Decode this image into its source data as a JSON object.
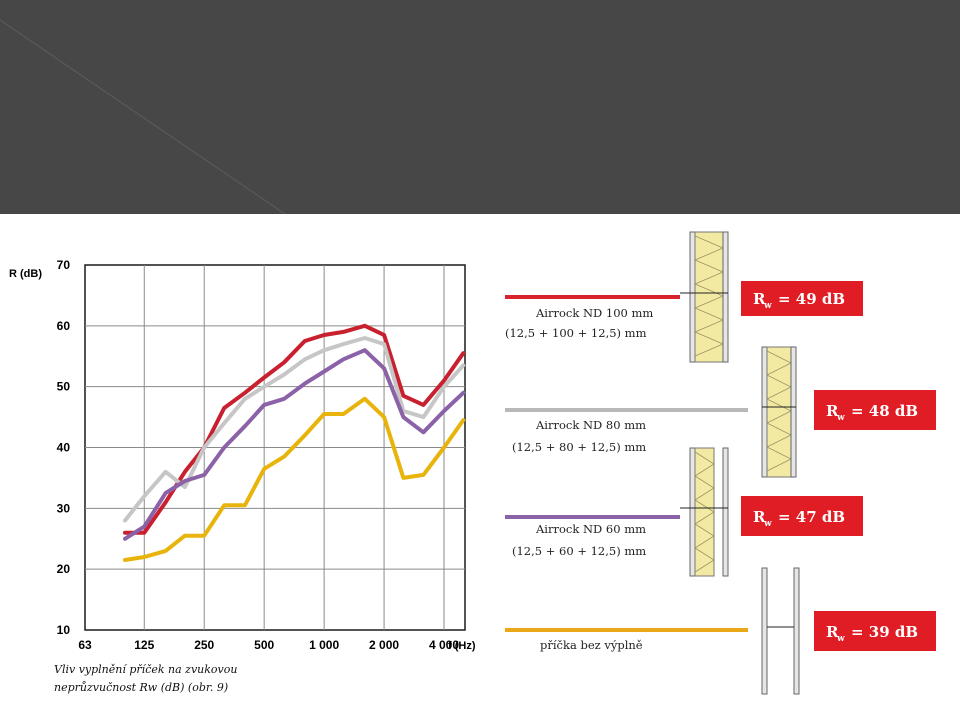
{
  "chart_data": {
    "type": "line",
    "ylabel": "R (dB)",
    "xlabel": "f (Hz)",
    "ylim": [
      10,
      70
    ],
    "yticks": [
      10,
      20,
      30,
      40,
      50,
      60,
      70
    ],
    "xticks": [
      "63",
      "125",
      "250",
      "500",
      "1 000",
      "2 000",
      "4 000"
    ],
    "grid": true,
    "caption_line1": "Vliv vyplnění příček na zvukovou",
    "caption_line2": "neprůzvučnost Rw (dB) (obr. 9)",
    "x": [
      100,
      125,
      160,
      200,
      250,
      315,
      400,
      500,
      630,
      800,
      1000,
      1250,
      1600,
      2000,
      2500,
      3150,
      4000,
      5000
    ],
    "series": [
      {
        "name": "Airrock ND 100 mm",
        "color": "#c8202e",
        "values": [
          26,
          26,
          31,
          36,
          40,
          46.5,
          49,
          51.5,
          54,
          57.5,
          58.5,
          59,
          60,
          58.5,
          48.5,
          47,
          51,
          55.5
        ]
      },
      {
        "name": "Airrock ND 80 mm",
        "color": "#c6c6c6",
        "values": [
          28,
          32,
          36,
          33.5,
          40,
          44,
          48,
          50,
          52,
          54.5,
          56,
          57,
          58,
          57,
          46,
          45,
          50,
          53.5
        ]
      },
      {
        "name": "Airrock ND 60 mm",
        "color": "#8b62a8",
        "values": [
          25,
          27,
          32.5,
          34.5,
          35.5,
          40,
          43.5,
          47,
          48,
          50.5,
          52.5,
          54.5,
          56,
          53,
          45,
          42.5,
          46,
          49
        ]
      },
      {
        "name": "příčka bez výplně",
        "color": "#e8b40c",
        "values": [
          21.5,
          22,
          23,
          25.5,
          25.5,
          30.5,
          30.5,
          36.5,
          38.5,
          42,
          45.5,
          45.5,
          48,
          45,
          35,
          35.5,
          40,
          44.5
        ]
      }
    ]
  },
  "legend": [
    {
      "line1": "Airrock ND 100 mm",
      "line2": "(12,5 + 100 + 12,5) mm",
      "badge": "R",
      "badge_sub": "w",
      "badge_value": "= 49 dB",
      "color": "#d8232d"
    },
    {
      "line1": "Airrock ND 80 mm",
      "line2": "(12,5 + 80 + 12,5) mm",
      "badge": "R",
      "badge_sub": "w",
      "badge_value": "= 48 dB",
      "color": "#b8b8b8"
    },
    {
      "line1": "Airrock ND 60 mm",
      "line2": "(12,5 + 60 + 12,5) mm",
      "badge": "R",
      "badge_sub": "w",
      "badge_value": "= 47 dB",
      "color": "#8b62a8"
    },
    {
      "line1": "příčka bez výplně",
      "line2": "",
      "badge": "R",
      "badge_sub": "w",
      "badge_value": "= 39 dB",
      "color": "#e8a817"
    }
  ],
  "colors": {
    "header_bg": "#474747",
    "badge_bg": "#e01c24",
    "insulation": "#f2e9a3"
  }
}
